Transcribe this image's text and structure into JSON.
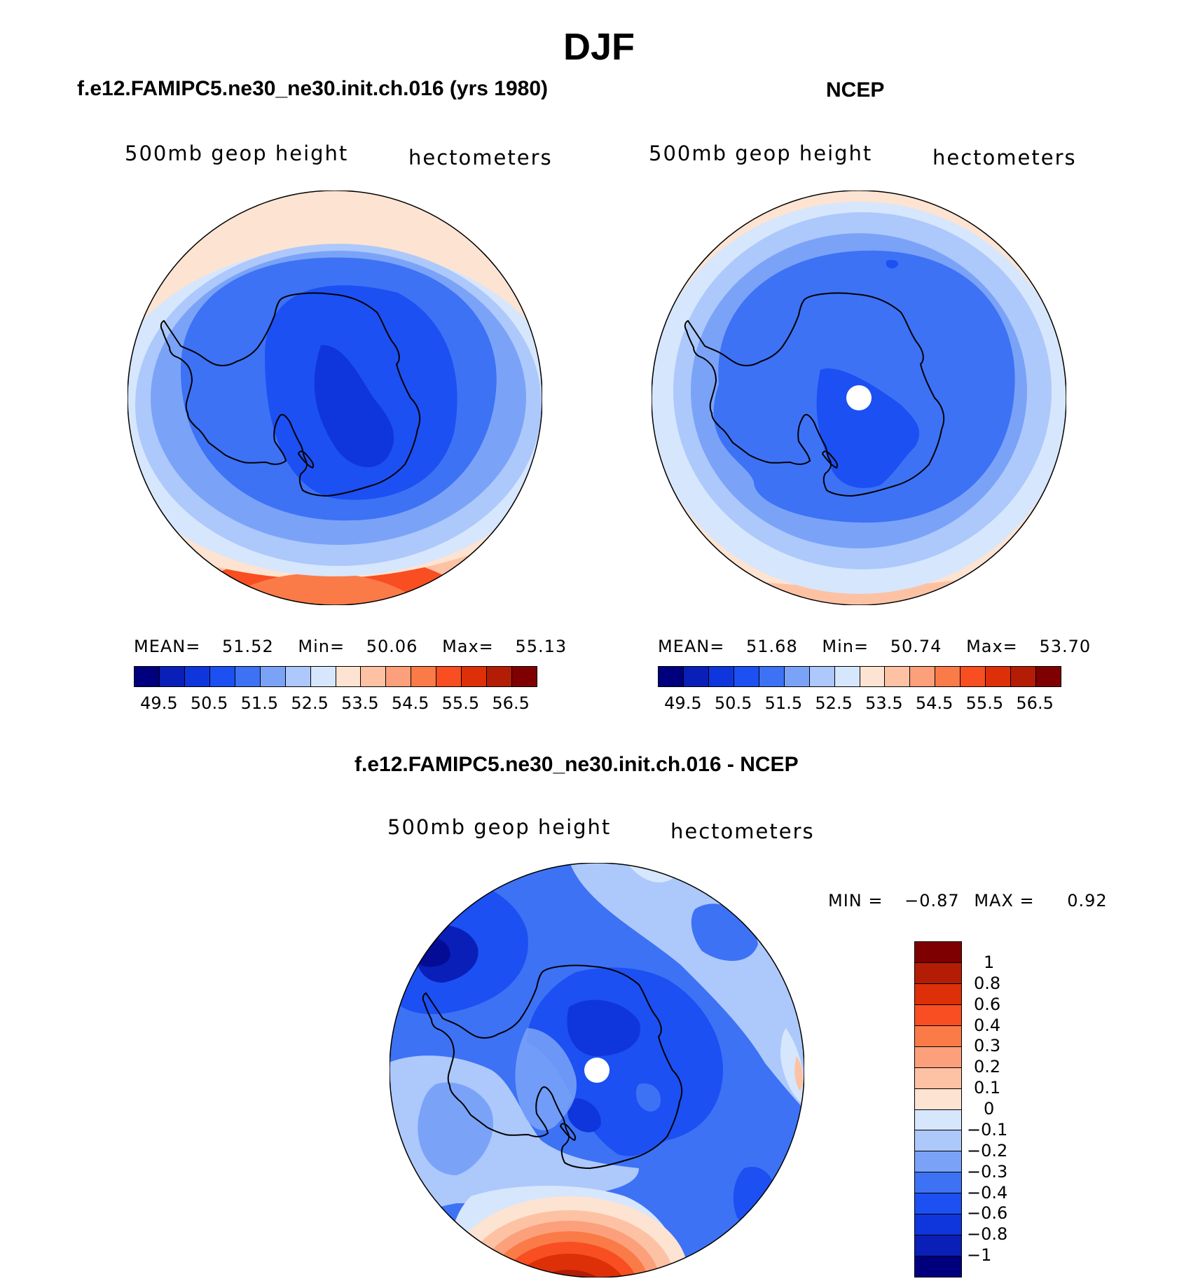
{
  "figure_title": "DJF",
  "colors": {
    "abs_palette": [
      "#00007f",
      "#0a1fb8",
      "#0f36dc",
      "#1c50f2",
      "#3d72f5",
      "#7aa3f8",
      "#adc8fb",
      "#d6e6fc",
      "#fde3d1",
      "#fdc2a4",
      "#fba07b",
      "#fa7b48",
      "#f84e22",
      "#dd3009",
      "#b41d05",
      "#7f0000"
    ],
    "diff_palette": [
      "#7f0000",
      "#b41d05",
      "#dd3009",
      "#f84e22",
      "#fa7b48",
      "#fba07b",
      "#fdc2a4",
      "#fde3d1",
      "#d6e6fc",
      "#adc8fb",
      "#7aa3f8",
      "#3d72f5",
      "#1c50f2",
      "#0f36dc",
      "#0a1fb8",
      "#00007f"
    ]
  },
  "panels": [
    {
      "title": "f.e12.FAMIPC5.ne30_ne30.init.ch.016 (yrs 1980)",
      "variable": "500mb  geop  height",
      "units": "hectometers",
      "mean_label": "MEAN=",
      "mean_value": "51.52",
      "min_label": "Min=",
      "min_value": "50.06",
      "max_label": "Max=",
      "max_value": "55.13",
      "colorbar_ticks": [
        "49.5",
        "50.5",
        "51.5",
        "52.5",
        "53.5",
        "54.5",
        "55.5",
        "56.5"
      ]
    },
    {
      "title": "NCEP",
      "variable": "500mb  geop  height",
      "units": "hectometers",
      "mean_label": "MEAN=",
      "mean_value": "51.68",
      "min_label": "Min=",
      "min_value": "50.74",
      "max_label": "Max=",
      "max_value": "53.70",
      "colorbar_ticks": [
        "49.5",
        "50.5",
        "51.5",
        "52.5",
        "53.5",
        "54.5",
        "55.5",
        "56.5"
      ]
    }
  ],
  "diff_panel": {
    "title": "f.e12.FAMIPC5.ne30_ne30.init.ch.016 - NCEP",
    "variable": "500mb  geop  height",
    "units": "hectometers",
    "min_label": "MIN =",
    "min_value": "−0.87",
    "max_label": "MAX =",
    "max_value": "0.92",
    "colorbar_labels": [
      "1",
      "0.8",
      "0.6",
      "0.4",
      "0.3",
      "0.2",
      "0.1",
      "0",
      "−0.1",
      "−0.2",
      "−0.3",
      "−0.4",
      "−0.6",
      "−0.8",
      "−1"
    ]
  }
}
